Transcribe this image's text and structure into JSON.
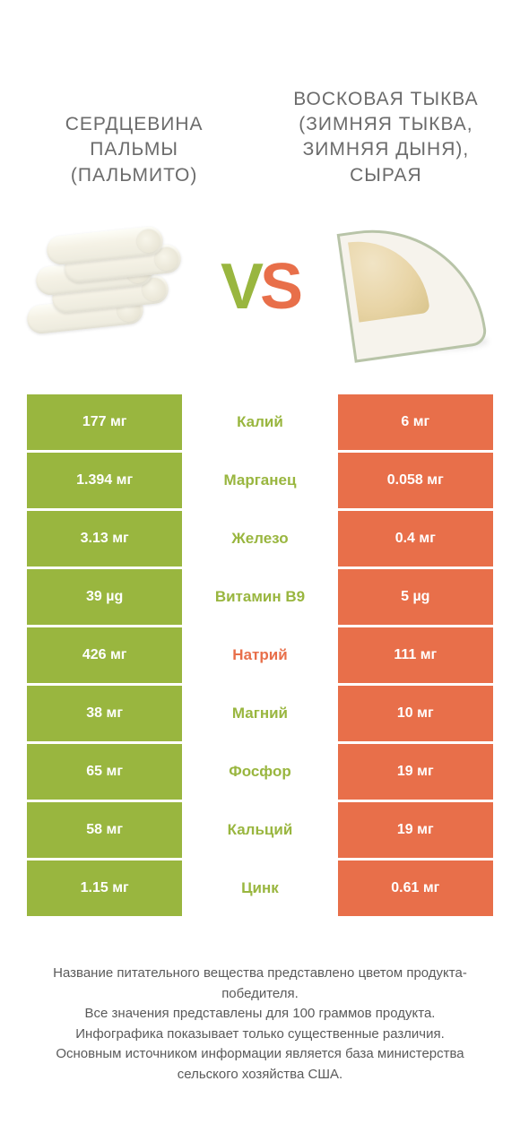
{
  "colors": {
    "left": "#99b63f",
    "right": "#e86f4a"
  },
  "titles": {
    "left": "СЕРДЦЕВИНА ПАЛЬМЫ (ПАЛЬМИТО)",
    "right": "ВОСКОВАЯ ТЫКВА (ЗИМНЯЯ ТЫКВА, ЗИМНЯЯ ДЫНЯ), СЫРАЯ"
  },
  "vs": {
    "v": "V",
    "s": "S"
  },
  "rows": [
    {
      "left": "177 мг",
      "label": "Калий",
      "right": "6 мг",
      "winner": "left"
    },
    {
      "left": "1.394 мг",
      "label": "Марганец",
      "right": "0.058 мг",
      "winner": "left"
    },
    {
      "left": "3.13 мг",
      "label": "Железо",
      "right": "0.4 мг",
      "winner": "left"
    },
    {
      "left": "39 µg",
      "label": "Витамин B9",
      "right": "5 µg",
      "winner": "left"
    },
    {
      "left": "426 мг",
      "label": "Натрий",
      "right": "111 мг",
      "winner": "right"
    },
    {
      "left": "38 мг",
      "label": "Магний",
      "right": "10 мг",
      "winner": "left"
    },
    {
      "left": "65 мг",
      "label": "Фосфор",
      "right": "19 мг",
      "winner": "left"
    },
    {
      "left": "58 мг",
      "label": "Кальций",
      "right": "19 мг",
      "winner": "left"
    },
    {
      "left": "1.15 мг",
      "label": "Цинк",
      "right": "0.61 мг",
      "winner": "left"
    }
  ],
  "footer": {
    "l1": "Название питательного вещества представлено цветом продукта-победителя.",
    "l2": "Все значения представлены для 100 граммов продукта.",
    "l3": "Инфографика показывает только существенные различия.",
    "l4": "Основным источником информации является база министерства сельского хозяйства США."
  }
}
